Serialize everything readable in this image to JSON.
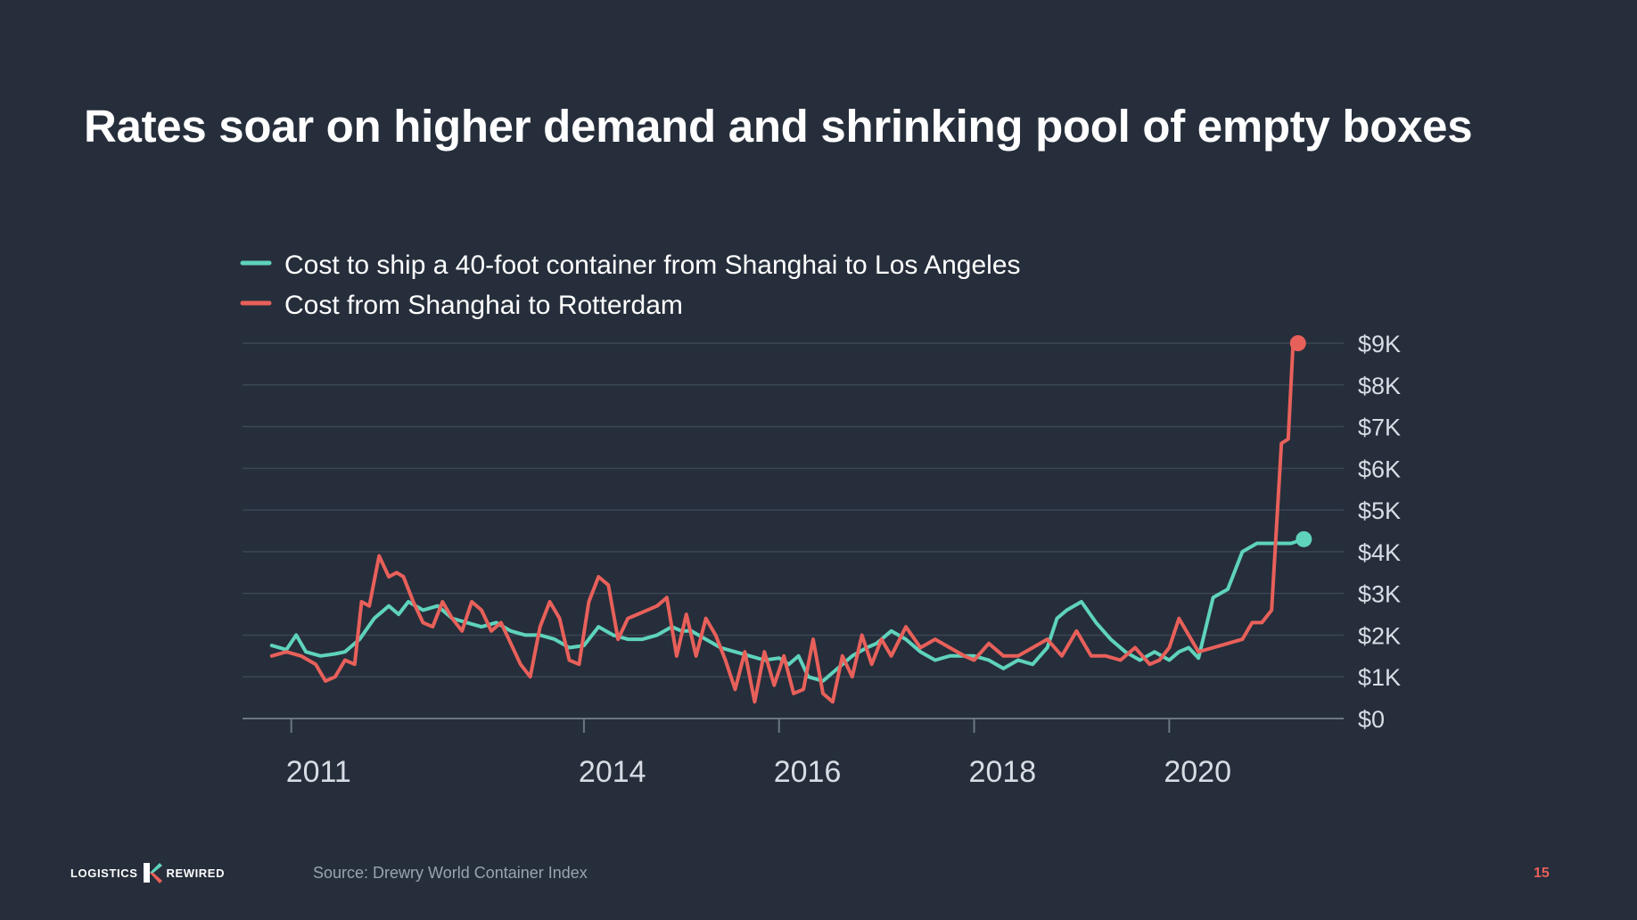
{
  "slide": {
    "title": "Rates soar on higher demand and shrinking pool of empty boxes",
    "source": "Source: Drewry World Container Index",
    "page_number": "15",
    "logo": {
      "left_text": "LOGISTICS",
      "right_text": "REWIRED",
      "icon": "k-logo-icon"
    }
  },
  "colors": {
    "background": "#262e3b",
    "series_la": "#5fd3bc",
    "series_rotterdam": "#e8605a",
    "grid": "#3b4656",
    "axis": "#6b7585"
  },
  "chart_data": {
    "type": "line",
    "title": "",
    "xlabel": "",
    "ylabel": "",
    "xlim": [
      2010.5,
      2021.45
    ],
    "ylim": [
      0,
      9000
    ],
    "grid": true,
    "legend_position": "top-left",
    "y_ticks": [
      {
        "value": 0,
        "label": "$0"
      },
      {
        "value": 1000,
        "label": "$1K"
      },
      {
        "value": 2000,
        "label": "$2K"
      },
      {
        "value": 3000,
        "label": "$3K"
      },
      {
        "value": 4000,
        "label": "$4K"
      },
      {
        "value": 5000,
        "label": "$5K"
      },
      {
        "value": 6000,
        "label": "$6K"
      },
      {
        "value": 7000,
        "label": "$7K"
      },
      {
        "value": 8000,
        "label": "$8K"
      },
      {
        "value": 9000,
        "label": "$9K"
      }
    ],
    "x_ticks": [
      {
        "value": 2011,
        "label": "2011"
      },
      {
        "value": 2014,
        "label": "2014"
      },
      {
        "value": 2016,
        "label": "2016"
      },
      {
        "value": 2018,
        "label": "2018"
      },
      {
        "value": 2020,
        "label": "2020"
      }
    ],
    "series": [
      {
        "name": "Cost to ship a 40-foot container from Shanghai to Los Angeles",
        "color": "#5fd3bc",
        "end_marker": true,
        "x": [
          2010.8,
          2010.95,
          2011.05,
          2011.15,
          2011.3,
          2011.45,
          2011.55,
          2011.7,
          2011.85,
          2012.0,
          2012.1,
          2012.2,
          2012.35,
          2012.5,
          2012.65,
          2012.8,
          2012.95,
          2013.1,
          2013.25,
          2013.4,
          2013.55,
          2013.7,
          2013.85,
          2014.0,
          2014.15,
          2014.3,
          2014.45,
          2014.6,
          2014.75,
          2014.9,
          2015.0,
          2015.1,
          2015.25,
          2015.4,
          2015.55,
          2015.7,
          2015.85,
          2016.0,
          2016.1,
          2016.2,
          2016.3,
          2016.45,
          2016.6,
          2016.75,
          2016.9,
          2017.0,
          2017.15,
          2017.3,
          2017.45,
          2017.6,
          2017.75,
          2017.9,
          2018.0,
          2018.15,
          2018.3,
          2018.45,
          2018.6,
          2018.75,
          2018.85,
          2018.95,
          2019.1,
          2019.25,
          2019.4,
          2019.55,
          2019.7,
          2019.85,
          2020.0,
          2020.1,
          2020.2,
          2020.3,
          2020.45,
          2020.6,
          2020.75,
          2020.9,
          2021.0,
          2021.1,
          2021.25,
          2021.38
        ],
        "values": [
          1750,
          1650,
          2000,
          1600,
          1500,
          1550,
          1600,
          1900,
          2400,
          2700,
          2500,
          2800,
          2600,
          2700,
          2400,
          2300,
          2200,
          2300,
          2100,
          2000,
          2000,
          1900,
          1700,
          1750,
          2200,
          2000,
          1900,
          1900,
          2000,
          2200,
          2100,
          2100,
          1900,
          1700,
          1600,
          1500,
          1400,
          1450,
          1300,
          1500,
          1000,
          900,
          1200,
          1500,
          1700,
          1800,
          2100,
          1900,
          1600,
          1400,
          1500,
          1500,
          1500,
          1400,
          1200,
          1400,
          1300,
          1700,
          2400,
          2600,
          2800,
          2300,
          1900,
          1600,
          1400,
          1600,
          1400,
          1600,
          1700,
          1450,
          2900,
          3100,
          4000,
          4200,
          4200,
          4200,
          4200,
          4300
        ]
      },
      {
        "name": "Cost from Shanghai to Rotterdam",
        "color": "#e8605a",
        "end_marker": true,
        "x": [
          2010.8,
          2010.95,
          2011.1,
          2011.25,
          2011.35,
          2011.45,
          2011.55,
          2011.65,
          2011.72,
          2011.8,
          2011.9,
          2012.0,
          2012.08,
          2012.15,
          2012.25,
          2012.35,
          2012.45,
          2012.55,
          2012.65,
          2012.75,
          2012.85,
          2012.95,
          2013.05,
          2013.15,
          2013.25,
          2013.35,
          2013.45,
          2013.55,
          2013.65,
          2013.75,
          2013.85,
          2013.95,
          2014.05,
          2014.15,
          2014.25,
          2014.35,
          2014.45,
          2014.55,
          2014.65,
          2014.75,
          2014.85,
          2014.95,
          2015.05,
          2015.15,
          2015.25,
          2015.35,
          2015.45,
          2015.55,
          2015.65,
          2015.75,
          2015.85,
          2015.95,
          2016.05,
          2016.15,
          2016.25,
          2016.35,
          2016.45,
          2016.55,
          2016.65,
          2016.75,
          2016.85,
          2016.95,
          2017.05,
          2017.15,
          2017.3,
          2017.45,
          2017.6,
          2017.75,
          2017.9,
          2018.0,
          2018.15,
          2018.3,
          2018.45,
          2018.6,
          2018.75,
          2018.9,
          2019.05,
          2019.2,
          2019.35,
          2019.5,
          2019.65,
          2019.8,
          2019.9,
          2020.0,
          2020.1,
          2020.2,
          2020.3,
          2020.45,
          2020.6,
          2020.75,
          2020.85,
          2020.95,
          2021.05,
          2021.1,
          2021.15,
          2021.22,
          2021.27,
          2021.32
        ],
        "values": [
          1500,
          1600,
          1500,
          1300,
          900,
          1000,
          1400,
          1300,
          2800,
          2700,
          3900,
          3400,
          3500,
          3400,
          2800,
          2300,
          2200,
          2800,
          2400,
          2100,
          2800,
          2600,
          2100,
          2300,
          1800,
          1300,
          1000,
          2200,
          2800,
          2400,
          1400,
          1300,
          2800,
          3400,
          3200,
          1900,
          2400,
          2500,
          2600,
          2700,
          2900,
          1500,
          2500,
          1500,
          2400,
          2000,
          1400,
          700,
          1600,
          400,
          1600,
          800,
          1500,
          600,
          700,
          1900,
          600,
          400,
          1500,
          1000,
          2000,
          1300,
          1900,
          1500,
          2200,
          1700,
          1900,
          1700,
          1500,
          1400,
          1800,
          1500,
          1500,
          1700,
          1900,
          1500,
          2100,
          1500,
          1500,
          1400,
          1700,
          1300,
          1400,
          1700,
          2400,
          2000,
          1600,
          1700,
          1800,
          1900,
          2300,
          2300,
          2600,
          4600,
          6600,
          6700,
          9000,
          9000
        ]
      }
    ]
  }
}
